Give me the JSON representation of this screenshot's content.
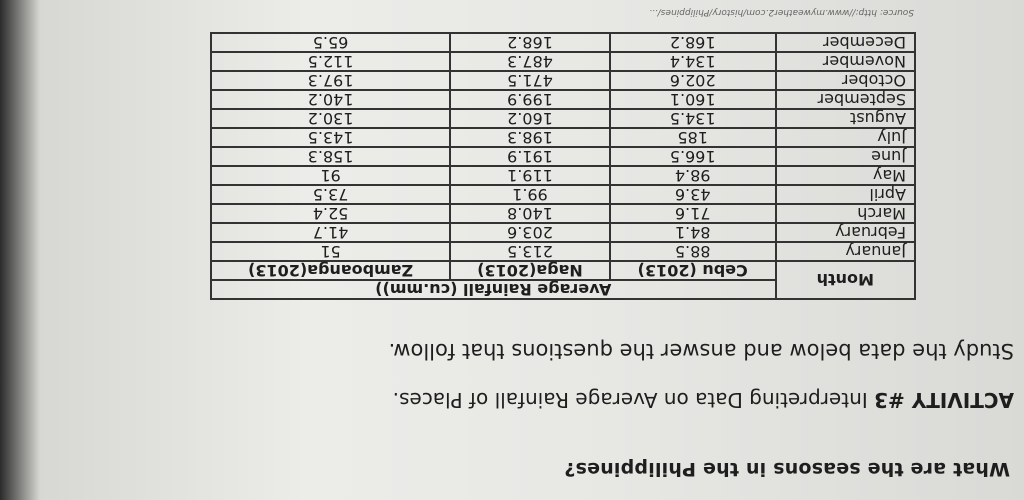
{
  "question": "What are the seasons in the Philippines?",
  "activity": {
    "label": "ACTIVITY #3",
    "title": "Interpreting Data on Average Rainfall of Places."
  },
  "instruction": "Study the data below and answer the questions that follow.",
  "table": {
    "group_header": "Average Rainfall (cu.mm))",
    "columns": [
      "Month",
      "Cebu (2013)",
      "Naga(2013)",
      "Zamboanga(2013)"
    ],
    "rows": [
      [
        "January",
        "88.5",
        "213.5",
        "51"
      ],
      [
        "February",
        "84.1",
        "203.6",
        "41.7"
      ],
      [
        "March",
        "71.6",
        "140.8",
        "52.4"
      ],
      [
        "April",
        "43.6",
        "99.1",
        "73.5"
      ],
      [
        "May",
        "98.4",
        "119.1",
        "91"
      ],
      [
        "June",
        "166.5",
        "191.9",
        "158.3"
      ],
      [
        "July",
        "185",
        "198.3",
        "143.5"
      ],
      [
        "August",
        "134.5",
        "160.2",
        "130.2"
      ],
      [
        "September",
        "160.1",
        "199.9",
        "140.2"
      ],
      [
        "October",
        "202.6",
        "471.5",
        "197.3"
      ],
      [
        "November",
        "134.4",
        "487.3",
        "112.5"
      ],
      [
        "December",
        "168.2",
        "168.2",
        "65.5"
      ]
    ]
  },
  "source": "Source: http://www.myweather2.com/history/Philippines/..."
}
